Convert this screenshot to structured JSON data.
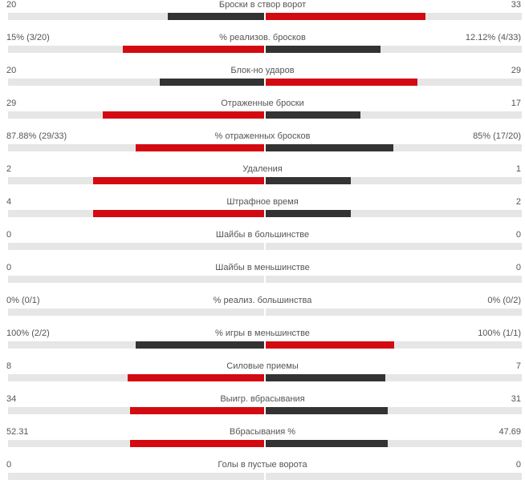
{
  "colors": {
    "leading": "#d30a11",
    "trailing": "#333333",
    "track": "#e6e6e6"
  },
  "stats": [
    {
      "label": "Броски в створ ворот",
      "home": "20",
      "away": "33",
      "home_share": 0.375,
      "away_share": 0.625,
      "home_leads": false
    },
    {
      "label": "% реализов. бросков",
      "home": "15% (3/20)",
      "away": "12.12% (4/33)",
      "home_share": 0.553,
      "away_share": 0.447,
      "home_leads": true
    },
    {
      "label": "Блок-но ударов",
      "home": "20",
      "away": "29",
      "home_share": 0.408,
      "away_share": 0.592,
      "home_leads": false
    },
    {
      "label": "Отраженные броски",
      "home": "29",
      "away": "17",
      "home_share": 0.63,
      "away_share": 0.37,
      "home_leads": true
    },
    {
      "label": "% отраженных бросков",
      "home": "87.88% (29/33)",
      "away": "85% (17/20)",
      "home_share": 0.502,
      "away_share": 0.498,
      "home_leads": true
    },
    {
      "label": "Удаления",
      "home": "2",
      "away": "1",
      "home_share": 0.667,
      "away_share": 0.333,
      "home_leads": true
    },
    {
      "label": "Штрафное время",
      "home": "4",
      "away": "2",
      "home_share": 0.667,
      "away_share": 0.333,
      "home_leads": true
    },
    {
      "label": "Шайбы в большинстве",
      "home": "0",
      "away": "0",
      "home_share": 0,
      "away_share": 0,
      "home_leads": true
    },
    {
      "label": "Шайбы в меньшинстве",
      "home": "0",
      "away": "0",
      "home_share": 0,
      "away_share": 0,
      "home_leads": true
    },
    {
      "label": "% реализ. большинства",
      "home": "0% (0/1)",
      "away": "0% (0/2)",
      "home_share": 0,
      "away_share": 0,
      "home_leads": true
    },
    {
      "label": "% игры в меньшинстве",
      "home": "100% (2/2)",
      "away": "100% (1/1)",
      "home_share": 0.5,
      "away_share": 0.5,
      "home_leads": false
    },
    {
      "label": "Силовые приемы",
      "home": "8",
      "away": "7",
      "home_share": 0.533,
      "away_share": 0.467,
      "home_leads": true
    },
    {
      "label": "Выигр. вбрасывания",
      "home": "34",
      "away": "31",
      "home_share": 0.523,
      "away_share": 0.477,
      "home_leads": true
    },
    {
      "label": "Вбрасывания %",
      "home": "52.31",
      "away": "47.69",
      "home_share": 0.523,
      "away_share": 0.477,
      "home_leads": true
    },
    {
      "label": "Голы в пустые ворота",
      "home": "0",
      "away": "0",
      "home_share": 0,
      "away_share": 0,
      "home_leads": true
    }
  ]
}
